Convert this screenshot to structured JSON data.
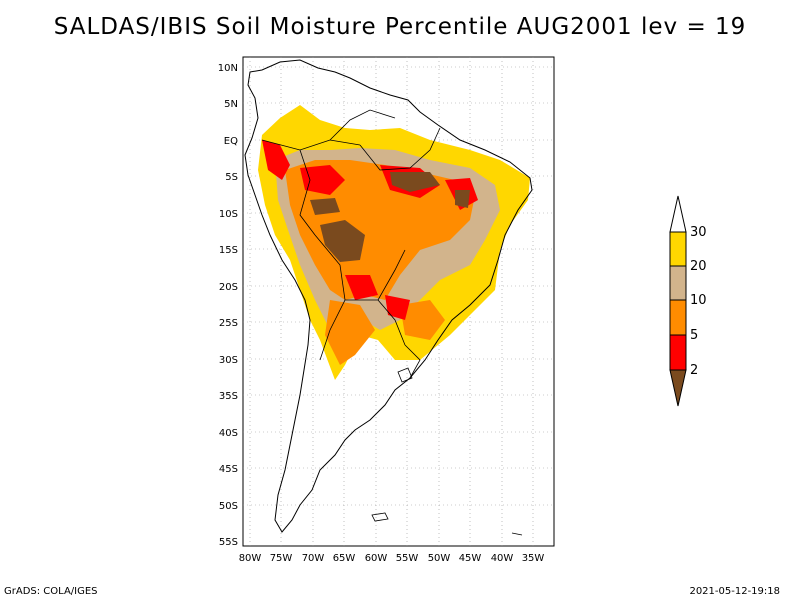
{
  "title": "SALDAS/IBIS Soil Moisture Percentile AUG2001 lev = 19",
  "map": {
    "lat_labels": [
      "10N",
      "5N",
      "EQ",
      "5S",
      "10S",
      "15S",
      "20S",
      "25S",
      "30S",
      "35S",
      "40S",
      "45S",
      "50S",
      "55S"
    ],
    "lon_labels": [
      "80W",
      "75W",
      "70W",
      "65W",
      "60W",
      "55W",
      "50W",
      "45W",
      "40W",
      "35W"
    ],
    "lat_range": [
      10,
      -56
    ],
    "lon_range": [
      -82,
      -33
    ]
  },
  "legend": {
    "levels": [
      "2",
      "5",
      "10",
      "20",
      "30"
    ],
    "colors": {
      "below_2": "#7a4a1e",
      "2_5": "#ff0000",
      "5_10": "#ff8c00",
      "10_20": "#d2b48c",
      "20_30": "#ffd700",
      "above_30": "#ffffff"
    }
  },
  "footer": {
    "left": "GrADS: COLA/IGES",
    "right": "2021-05-12-19:18"
  }
}
